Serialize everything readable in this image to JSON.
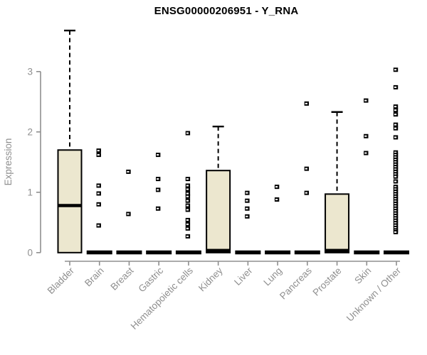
{
  "page": {
    "background": "#ffffff"
  },
  "chart": {
    "colors": {
      "box_fill": "#ece7cf",
      "box_stroke": "#000000",
      "median": "#000000",
      "flat_bar": "#000000",
      "outlier": "#000000",
      "outlier_center": "#ffffff",
      "axis": "#8f8f8f",
      "tick_label": "#8f8f8f",
      "title": "#000000"
    }
  },
  "chart_data": {
    "type": "boxplot",
    "title": "ENSG00000206951 - Y_RNA",
    "xlabel": "",
    "ylabel": "Expression",
    "ylim": [
      0,
      3.7
    ],
    "yticks": [
      0,
      1,
      2,
      3
    ],
    "grid": false,
    "legend": false,
    "categories": [
      "Bladder",
      "Brain",
      "Breast",
      "Gastric",
      "Hematopoietic cells",
      "Kidney",
      "Liver",
      "Lung",
      "Pancreas",
      "Prostate",
      "Skin",
      "Unknown / Other"
    ],
    "series": [
      {
        "name": "Bladder",
        "q1": 0,
        "median": 0.78,
        "q3": 1.7,
        "whisker_low": 0,
        "whisker_high": 3.68,
        "outliers": []
      },
      {
        "name": "Brain",
        "q1": 0,
        "median": 0,
        "q3": 0,
        "whisker_low": 0,
        "whisker_high": 0,
        "outliers": [
          1.69,
          1.62,
          1.11,
          0.98,
          0.8,
          0.45
        ]
      },
      {
        "name": "Breast",
        "q1": 0,
        "median": 0,
        "q3": 0,
        "whisker_low": 0,
        "whisker_high": 0,
        "outliers": [
          1.34,
          0.64
        ]
      },
      {
        "name": "Gastric",
        "q1": 0,
        "median": 0,
        "q3": 0,
        "whisker_low": 0,
        "whisker_high": 0,
        "outliers": [
          1.62,
          1.22,
          1.04,
          0.73
        ]
      },
      {
        "name": "Hematopoietic cells",
        "q1": 0,
        "median": 0,
        "q3": 0,
        "whisker_low": 0,
        "whisker_high": 0,
        "outliers": [
          1.98,
          1.22,
          1.11,
          1.05,
          0.98,
          0.93,
          0.86,
          0.78,
          0.71,
          0.54,
          0.47,
          0.4,
          0.27
        ]
      },
      {
        "name": "Kidney",
        "q1": 0,
        "median": 0,
        "q3": 1.36,
        "whisker_low": 0,
        "whisker_high": 2.09,
        "outliers": []
      },
      {
        "name": "Liver",
        "q1": 0,
        "median": 0,
        "q3": 0,
        "whisker_low": 0,
        "whisker_high": 0,
        "outliers": [
          0.99,
          0.86,
          0.73,
          0.6
        ]
      },
      {
        "name": "Lung",
        "q1": 0,
        "median": 0,
        "q3": 0,
        "whisker_low": 0,
        "whisker_high": 0,
        "outliers": [
          1.09,
          0.88
        ]
      },
      {
        "name": "Pancreas",
        "q1": 0,
        "median": 0,
        "q3": 0,
        "whisker_low": 0,
        "whisker_high": 0,
        "outliers": [
          2.47,
          1.39,
          0.99
        ]
      },
      {
        "name": "Prostate",
        "q1": 0,
        "median": 0,
        "q3": 0.97,
        "whisker_low": 0,
        "whisker_high": 2.33,
        "outliers": []
      },
      {
        "name": "Skin",
        "q1": 0,
        "median": 0,
        "q3": 0,
        "whisker_low": 0,
        "whisker_high": 0,
        "outliers": [
          2.52,
          1.93,
          1.65
        ]
      },
      {
        "name": "Unknown / Other",
        "q1": 0,
        "median": 0,
        "q3": 0,
        "whisker_low": 0,
        "whisker_high": 0,
        "outliers": [
          3.03,
          2.74,
          2.42,
          2.36,
          2.29,
          2.12,
          2.06,
          1.91,
          1.66,
          1.62,
          1.58,
          1.54,
          1.5,
          1.46,
          1.42,
          1.38,
          1.34,
          1.3,
          1.26,
          1.18,
          1.09,
          1.05,
          1.01,
          0.97,
          0.93,
          0.89,
          0.85,
          0.81,
          0.77,
          0.73,
          0.69,
          0.65,
          0.61,
          0.57,
          0.53,
          0.49,
          0.45,
          0.41,
          0.37,
          0.34
        ]
      }
    ]
  }
}
